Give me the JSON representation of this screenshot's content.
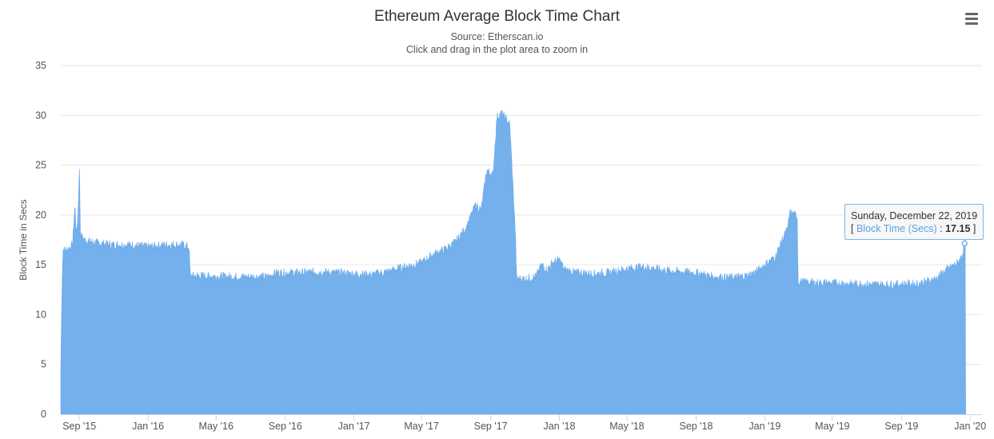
{
  "chart": {
    "title": "Ethereum Average Block Time Chart",
    "subtitle_1": "Source: Etherscan.io",
    "subtitle_2": "Click and drag in the plot area to zoom in",
    "menu_icon": "hamburger-menu-icon",
    "tooltip": {
      "date": "Sunday, December 22, 2019",
      "open": "[",
      "series_label": "Block Time (Secs)",
      "sep": " : ",
      "value": "17.15",
      "close": "]"
    }
  },
  "chart_data": {
    "type": "area",
    "title": "Ethereum Average Block Time Chart",
    "subtitle": "Source: Etherscan.io",
    "xlabel": "",
    "ylabel": "Block Time in Secs",
    "ylim": [
      0,
      35
    ],
    "yticks": [
      0,
      5,
      10,
      15,
      20,
      25,
      30,
      35
    ],
    "xlim": [
      "2015-07-30",
      "2020-01-22"
    ],
    "xticks": [
      {
        "date": "2015-09-01",
        "label": "Sep '15"
      },
      {
        "date": "2016-01-01",
        "label": "Jan '16"
      },
      {
        "date": "2016-05-01",
        "label": "May '16"
      },
      {
        "date": "2016-09-01",
        "label": "Sep '16"
      },
      {
        "date": "2017-01-01",
        "label": "Jan '17"
      },
      {
        "date": "2017-05-01",
        "label": "May '17"
      },
      {
        "date": "2017-09-01",
        "label": "Sep '17"
      },
      {
        "date": "2018-01-01",
        "label": "Jan '18"
      },
      {
        "date": "2018-05-01",
        "label": "May '18"
      },
      {
        "date": "2018-09-01",
        "label": "Sep '18"
      },
      {
        "date": "2019-01-01",
        "label": "Jan '19"
      },
      {
        "date": "2019-05-01",
        "label": "May '19"
      },
      {
        "date": "2019-09-01",
        "label": "Sep '19"
      },
      {
        "date": "2020-01-01",
        "label": "Jan '20"
      }
    ],
    "grid": true,
    "color": "#73b0ec",
    "series": [
      {
        "name": "Block Time (Secs)",
        "points": [
          [
            "2015-07-30",
            4.5
          ],
          [
            "2015-08-01",
            12.5
          ],
          [
            "2015-08-03",
            16.5
          ],
          [
            "2015-08-10",
            16.5
          ],
          [
            "2015-08-20",
            17.0
          ],
          [
            "2015-08-24",
            21.0
          ],
          [
            "2015-08-27",
            18.0
          ],
          [
            "2015-08-30",
            20.5
          ],
          [
            "2015-09-01",
            25.3
          ],
          [
            "2015-09-03",
            18.0
          ],
          [
            "2015-09-10",
            17.5
          ],
          [
            "2015-10-01",
            17.2
          ],
          [
            "2015-11-01",
            17.0
          ],
          [
            "2015-12-01",
            17.0
          ],
          [
            "2016-01-01",
            16.8
          ],
          [
            "2016-02-01",
            17.0
          ],
          [
            "2016-03-01",
            17.0
          ],
          [
            "2016-03-14",
            16.8
          ],
          [
            "2016-03-16",
            13.9
          ],
          [
            "2016-04-01",
            13.9
          ],
          [
            "2016-06-01",
            13.8
          ],
          [
            "2016-08-01",
            13.8
          ],
          [
            "2016-08-15",
            14.2
          ],
          [
            "2016-10-01",
            14.2
          ],
          [
            "2016-11-01",
            14.3
          ],
          [
            "2016-12-01",
            14.2
          ],
          [
            "2017-01-01",
            14.1
          ],
          [
            "2017-02-01",
            14.0
          ],
          [
            "2017-03-01",
            14.3
          ],
          [
            "2017-04-01",
            14.8
          ],
          [
            "2017-05-01",
            15.2
          ],
          [
            "2017-05-20",
            16.0
          ],
          [
            "2017-06-10",
            16.5
          ],
          [
            "2017-07-01",
            17.3
          ],
          [
            "2017-07-20",
            18.8
          ],
          [
            "2017-08-05",
            21.0
          ],
          [
            "2017-08-15",
            20.5
          ],
          [
            "2017-08-25",
            24.5
          ],
          [
            "2017-09-05",
            24.0
          ],
          [
            "2017-09-12",
            29.8
          ],
          [
            "2017-09-20",
            30.2
          ],
          [
            "2017-09-30",
            29.5
          ],
          [
            "2017-10-05",
            29.0
          ],
          [
            "2017-10-15",
            18.0
          ],
          [
            "2017-10-17",
            13.6
          ],
          [
            "2017-11-01",
            13.6
          ],
          [
            "2017-11-20",
            13.8
          ],
          [
            "2017-12-01",
            15.0
          ],
          [
            "2017-12-10",
            14.5
          ],
          [
            "2017-12-20",
            15.2
          ],
          [
            "2018-01-01",
            15.5
          ],
          [
            "2018-01-10",
            14.5
          ],
          [
            "2018-02-01",
            14.2
          ],
          [
            "2018-03-01",
            14.1
          ],
          [
            "2018-04-01",
            14.2
          ],
          [
            "2018-05-01",
            14.6
          ],
          [
            "2018-06-01",
            14.8
          ],
          [
            "2018-07-01",
            14.5
          ],
          [
            "2018-08-01",
            14.3
          ],
          [
            "2018-09-01",
            14.2
          ],
          [
            "2018-10-01",
            13.8
          ],
          [
            "2018-11-01",
            13.7
          ],
          [
            "2018-12-01",
            13.9
          ],
          [
            "2018-12-20",
            14.4
          ],
          [
            "2019-01-01",
            15.0
          ],
          [
            "2019-01-20",
            15.8
          ],
          [
            "2019-02-01",
            17.5
          ],
          [
            "2019-02-10",
            18.5
          ],
          [
            "2019-02-15",
            20.3
          ],
          [
            "2019-02-28",
            19.8
          ],
          [
            "2019-03-01",
            13.3
          ],
          [
            "2019-04-01",
            13.2
          ],
          [
            "2019-06-01",
            13.1
          ],
          [
            "2019-08-01",
            13.0
          ],
          [
            "2019-10-01",
            13.1
          ],
          [
            "2019-11-01",
            13.6
          ],
          [
            "2019-11-20",
            14.5
          ],
          [
            "2019-12-10",
            15.2
          ],
          [
            "2019-12-18",
            16.0
          ],
          [
            "2019-12-22",
            17.15
          ],
          [
            "2019-12-24",
            17.3
          ]
        ]
      }
    ],
    "tooltip": {
      "date": "2019-12-22",
      "value": 17.15
    }
  }
}
